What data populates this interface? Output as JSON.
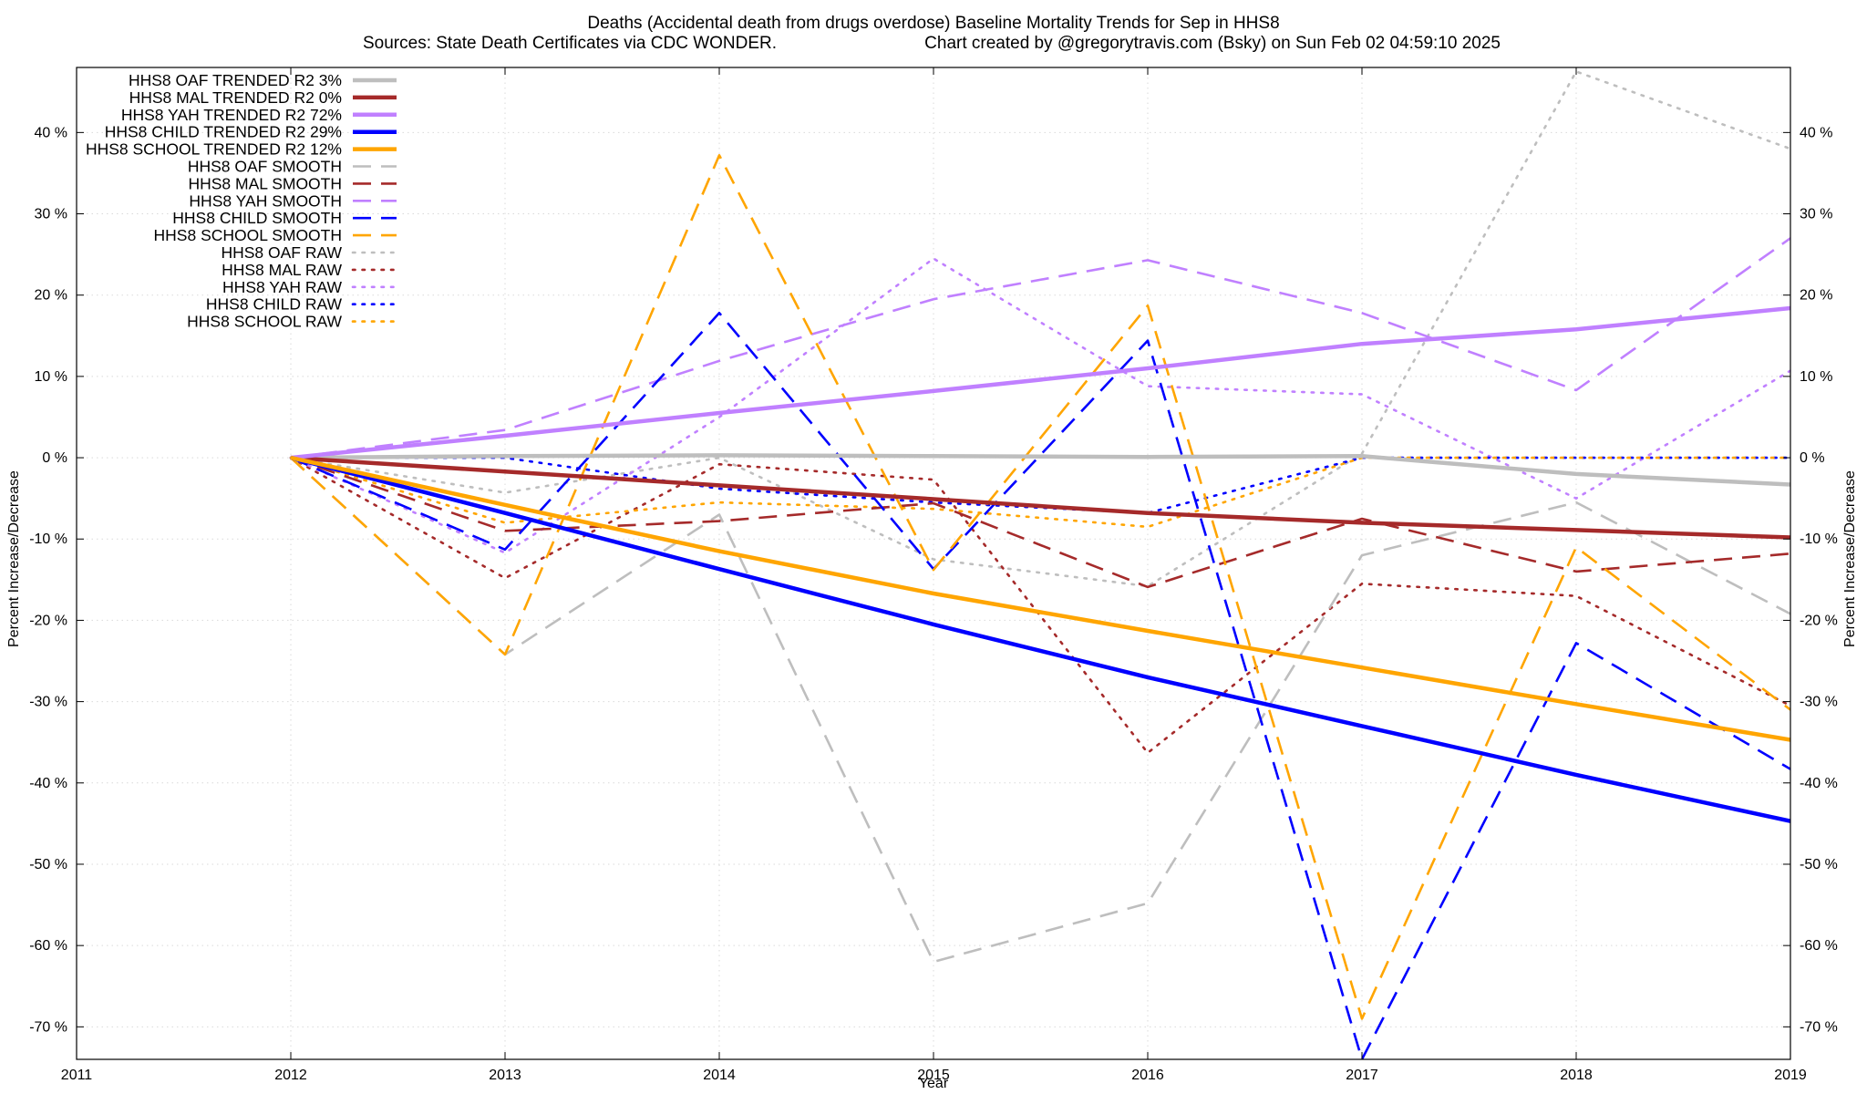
{
  "chart_data": {
    "type": "line",
    "title": "Deaths (Accidental death from drugs overdose)  Baseline Mortality Trends for Sep in HHS8",
    "subtitle_left": "Sources: State Death Certificates via CDC WONDER.",
    "subtitle_right": "Chart created by @gregorytravis.com (Bsky) on Sun Feb 02 04:59:10 2025",
    "xlabel": "Year",
    "ylabel": "Percent Increase/Decrease",
    "y2label": "Percent Increase/Decrease",
    "xlim": [
      2011,
      2019
    ],
    "ylim": [
      -74,
      48
    ],
    "x_ticks": [
      2011,
      2012,
      2013,
      2014,
      2015,
      2016,
      2017,
      2018,
      2019
    ],
    "x_tick_labels": [
      "2011",
      "2012",
      "2013",
      "2014",
      "2015",
      "2016",
      "2017",
      "2018",
      "2019"
    ],
    "y_ticks": [
      -70,
      -60,
      -50,
      -40,
      -30,
      -20,
      -10,
      0,
      10,
      20,
      30,
      40
    ],
    "y_tick_labels": [
      "-70 %",
      "-60 %",
      "-50 %",
      "-40 %",
      "-30 %",
      "-20 %",
      "-10 %",
      "0 %",
      "10 %",
      "20 %",
      "30 %",
      "40 %"
    ],
    "grid": true,
    "legend_position": "top-left",
    "colors": {
      "oaf": "#bebebe",
      "mal": "#a52a2a",
      "yah": "#c080ff",
      "child": "#0000ff",
      "school": "#ffa500"
    },
    "series": [
      {
        "name": "HHS8 OAF TRENDED R2  3%",
        "style": "solid",
        "color": "#bebebe",
        "x": [
          2012,
          2013,
          2014,
          2015,
          2016,
          2017,
          2018,
          2019
        ],
        "y": [
          0,
          0.2,
          0.3,
          0.2,
          0.1,
          0.2,
          -2.0,
          -3.3
        ]
      },
      {
        "name": "HHS8 MAL TRENDED R2  0%",
        "style": "solid",
        "color": "#a52a2a",
        "x": [
          2012,
          2013,
          2014,
          2015,
          2016,
          2017,
          2018,
          2019
        ],
        "y": [
          0,
          -1.7,
          -3.4,
          -5.1,
          -6.8,
          -8.0,
          -8.9,
          -9.8
        ]
      },
      {
        "name": "HHS8 YAH TRENDED R2  72%",
        "style": "solid",
        "color": "#c080ff",
        "x": [
          2012,
          2013,
          2014,
          2015,
          2016,
          2017,
          2018,
          2019
        ],
        "y": [
          0,
          2.7,
          5.5,
          8.2,
          11.0,
          14.0,
          15.8,
          18.4
        ]
      },
      {
        "name": "HHS8 CHILD TRENDED R2  29%",
        "style": "solid",
        "color": "#0000ff",
        "x": [
          2012,
          2013,
          2014,
          2015,
          2016,
          2017,
          2018,
          2019
        ],
        "y": [
          0,
          -6.8,
          -13.7,
          -20.5,
          -27.0,
          -33.0,
          -39.0,
          -44.7
        ]
      },
      {
        "name": "HHS8 SCHOOL TRENDED R2  12%",
        "style": "solid",
        "color": "#ffa500",
        "x": [
          2012,
          2013,
          2014,
          2015,
          2016,
          2017,
          2018,
          2019
        ],
        "y": [
          0,
          -5.8,
          -11.5,
          -16.7,
          -21.3,
          -25.8,
          -30.3,
          -34.7
        ]
      },
      {
        "name": "HHS8 OAF SMOOTH",
        "style": "dashed",
        "color": "#bebebe",
        "x": [
          2012,
          2013,
          2014,
          2015,
          2016,
          2017,
          2018,
          2019
        ],
        "y": [
          0,
          -24.2,
          -7.0,
          -62.0,
          -54.8,
          -12.0,
          -5.5,
          -19.2
        ]
      },
      {
        "name": "HHS8 MAL SMOOTH",
        "style": "dashed",
        "color": "#a52a2a",
        "x": [
          2012,
          2013,
          2014,
          2015,
          2016,
          2017,
          2018,
          2019
        ],
        "y": [
          0,
          -9.0,
          -7.8,
          -5.6,
          -15.9,
          -7.5,
          -14.0,
          -11.8
        ]
      },
      {
        "name": "HHS8 YAH SMOOTH",
        "style": "dashed",
        "color": "#c080ff",
        "x": [
          2012,
          2013,
          2014,
          2015,
          2016,
          2017,
          2018,
          2019
        ],
        "y": [
          0,
          3.4,
          11.9,
          19.5,
          24.3,
          17.8,
          8.3,
          27.0
        ]
      },
      {
        "name": "HHS8 CHILD SMOOTH",
        "style": "dashed",
        "color": "#0000ff",
        "x": [
          2012,
          2013,
          2014,
          2015,
          2016,
          2017,
          2018,
          2019
        ],
        "y": [
          0,
          -11.3,
          17.8,
          -13.7,
          14.4,
          -74.0,
          -22.8,
          -38.3
        ]
      },
      {
        "name": "HHS8 SCHOOL SMOOTH",
        "style": "dashed",
        "color": "#ffa500",
        "x": [
          2012,
          2013,
          2014,
          2015,
          2016,
          2017,
          2018,
          2019
        ],
        "y": [
          0,
          -24.2,
          37.2,
          -13.8,
          18.7,
          -69.0,
          -11.0,
          -31.0
        ]
      },
      {
        "name": "HHS8 OAF RAW",
        "style": "dotted",
        "color": "#bebebe",
        "x": [
          2012,
          2013,
          2014,
          2015,
          2016,
          2017,
          2018,
          2019
        ],
        "y": [
          0,
          -4.3,
          0.0,
          -12.5,
          -15.8,
          0.5,
          47.5,
          38.0
        ]
      },
      {
        "name": "HHS8 MAL RAW",
        "style": "dotted",
        "color": "#a52a2a",
        "x": [
          2012,
          2013,
          2014,
          2015,
          2016,
          2017,
          2018,
          2019
        ],
        "y": [
          0,
          -14.8,
          -0.8,
          -2.7,
          -36.3,
          -15.5,
          -17.0,
          -30.5
        ]
      },
      {
        "name": "HHS8 YAH RAW",
        "style": "dotted",
        "color": "#c080ff",
        "x": [
          2012,
          2013,
          2014,
          2015,
          2016,
          2017,
          2018,
          2019
        ],
        "y": [
          0,
          -11.7,
          5.0,
          24.5,
          8.8,
          7.8,
          -5.0,
          10.7
        ]
      },
      {
        "name": "HHS8 CHILD RAW",
        "style": "dotted",
        "color": "#0000ff",
        "x": [
          2012,
          2013,
          2014,
          2015,
          2016,
          2017,
          2018,
          2019
        ],
        "y": [
          0,
          0.0,
          -3.8,
          -5.5,
          -6.8,
          0.0,
          0.0,
          0.0
        ]
      },
      {
        "name": "HHS8 SCHOOL RAW",
        "style": "dotted",
        "color": "#ffa500",
        "x": [
          2012,
          2013,
          2014,
          2015,
          2016,
          2017,
          2018,
          2019
        ],
        "y": [
          0,
          -8.0,
          -5.5,
          -6.3,
          -8.5,
          0.0,
          0.0,
          0.0
        ]
      }
    ]
  }
}
